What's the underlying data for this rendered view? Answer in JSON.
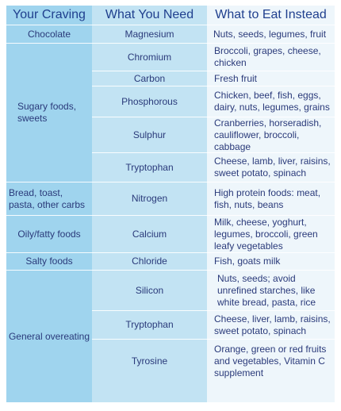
{
  "headers": {
    "craving": "Your Craving",
    "need": "What You Need",
    "eat": "What to Eat Instead"
  },
  "cravings": [
    {
      "label": "Chocolate"
    },
    {
      "label": "Sugary foods, sweets"
    },
    {
      "label": "Bread, toast, pasta, other carbs"
    },
    {
      "label": "Oily/fatty foods"
    },
    {
      "label": "Salty foods"
    },
    {
      "label": "General overeating"
    }
  ],
  "nutrients": [
    {
      "need": "Magnesium",
      "eat": "Nuts, seeds, legumes, fruit"
    },
    {
      "need": "Chromium",
      "eat": "Broccoli, grapes, cheese, chicken"
    },
    {
      "need": "Carbon",
      "eat": "Fresh fruit"
    },
    {
      "need": "Phosphorous",
      "eat": "Chicken, beef, fish, eggs, dairy, nuts, legumes, grains"
    },
    {
      "need": "Sulphur",
      "eat": "Cranberries, horseradish, cauliflower, broccoli, cabbage"
    },
    {
      "need": "Tryptophan",
      "eat": "Cheese, lamb, liver, raisins, sweet potato, spinach"
    },
    {
      "need": "Nitrogen",
      "eat": "High protein foods: meat, fish, nuts, beans"
    },
    {
      "need": "Calcium",
      "eat": "Milk, cheese, yoghurt, legumes, broccoli, green leafy vegetables"
    },
    {
      "need": "Chloride",
      "eat": "Fish, goats milk"
    },
    {
      "need": "Silicon",
      "eat": "Nuts, seeds; avoid unrefined starches, like white bread, pasta, rice"
    },
    {
      "need": "Tryptophan",
      "eat": "Cheese, liver, lamb, raisins, sweet potato, spinach"
    },
    {
      "need": "Tyrosine",
      "eat": "Orange, green or red fruits and vegetables, Vitamin C supplement"
    }
  ]
}
